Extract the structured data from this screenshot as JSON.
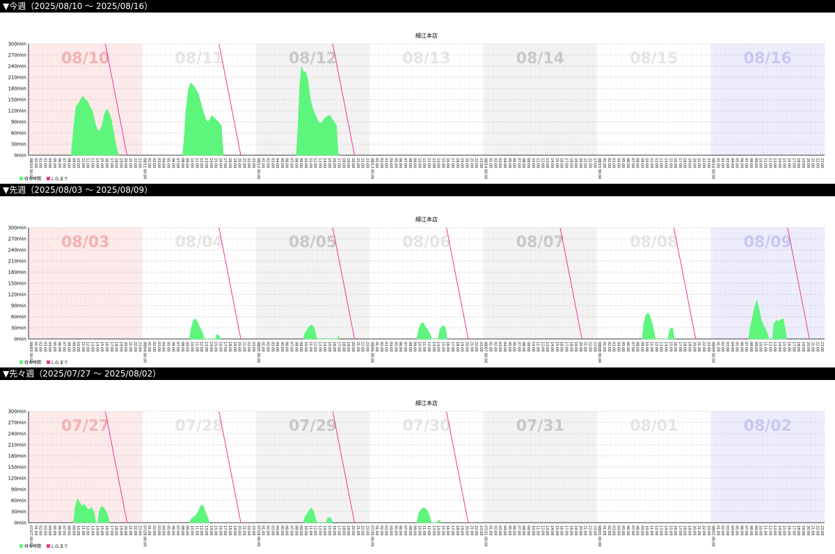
{
  "colors": {
    "wait": "#5ef57d",
    "lo": "#ee3399",
    "sunday_bg": "#fdeaea",
    "saturday_bg": "#ededfc",
    "gray_bg": "#f3f3f3",
    "sunday_label": "#f5b2b2",
    "saturday_label": "#c8c8f5",
    "label_dark": "#c9c9c9",
    "label_light": "#e6e6e6"
  },
  "chart_data": [
    {
      "type": "area",
      "header": "▼今週（2025/08/10 ～ 2025/08/16）",
      "title": "細江本店",
      "ylim": [
        0,
        300
      ],
      "y_ticks": [
        "0min",
        "30min",
        "60min",
        "90min",
        "120min",
        "150min",
        "180min",
        "210min",
        "240min",
        "270min",
        "300min"
      ],
      "legend": [
        "待ち時間",
        "L.O.まで"
      ],
      "hour_labels": [
        "00:00",
        "01:00",
        "02:00",
        "03:00",
        "04:00",
        "05:00",
        "06:00",
        "07:00",
        "08:00",
        "09:00",
        "10:00",
        "11:00",
        "12:00",
        "13:00",
        "14:00",
        "15:00",
        "16:00",
        "17:00",
        "18:00",
        "19:00",
        "20:00",
        "21:00",
        "22:00",
        "23:00"
      ],
      "days": [
        {
          "label": "08/10",
          "bg": "sunday",
          "lo": true,
          "wait": [
            [
              9,
              0
            ],
            [
              9.2,
              30
            ],
            [
              9.5,
              75
            ],
            [
              10,
              130
            ],
            [
              10.5,
              140
            ],
            [
              11,
              150
            ],
            [
              11.5,
              160
            ],
            [
              12,
              150
            ],
            [
              12.5,
              145
            ],
            [
              13,
              130
            ],
            [
              13.5,
              120
            ],
            [
              14,
              90
            ],
            [
              14.5,
              70
            ],
            [
              15,
              65
            ],
            [
              15.5,
              80
            ],
            [
              16,
              110
            ],
            [
              16.5,
              125
            ],
            [
              17,
              115
            ],
            [
              17.5,
              95
            ],
            [
              18,
              60
            ],
            [
              18.5,
              25
            ],
            [
              19,
              0
            ]
          ]
        },
        {
          "label": "08/11",
          "bg": "white",
          "lo": true,
          "wait": [
            [
              8.5,
              0
            ],
            [
              8.8,
              40
            ],
            [
              9.2,
              120
            ],
            [
              9.7,
              175
            ],
            [
              10.2,
              195
            ],
            [
              10.7,
              190
            ],
            [
              11.2,
              180
            ],
            [
              11.7,
              170
            ],
            [
              12.2,
              150
            ],
            [
              12.7,
              125
            ],
            [
              13.2,
              105
            ],
            [
              13.7,
              90
            ],
            [
              14.2,
              95
            ],
            [
              14.7,
              108
            ],
            [
              15.2,
              100
            ],
            [
              15.7,
              95
            ],
            [
              16.2,
              88
            ],
            [
              16.7,
              80
            ],
            [
              17.1,
              0
            ]
          ]
        },
        {
          "label": "08/12",
          "bg": "gray",
          "lo": true,
          "wait": [
            [
              8.5,
              0
            ],
            [
              8.8,
              60
            ],
            [
              9.2,
              180
            ],
            [
              9.6,
              240
            ],
            [
              10,
              225
            ],
            [
              10.5,
              225
            ],
            [
              11,
              200
            ],
            [
              11.5,
              150
            ],
            [
              12,
              125
            ],
            [
              12.5,
              110
            ],
            [
              13,
              95
            ],
            [
              13.5,
              85
            ],
            [
              14,
              90
            ],
            [
              14.5,
              100
            ],
            [
              15,
              105
            ],
            [
              15.5,
              108
            ],
            [
              16,
              100
            ],
            [
              16.5,
              90
            ],
            [
              17,
              80
            ],
            [
              17.4,
              0
            ]
          ]
        },
        {
          "label": "08/13",
          "bg": "white",
          "lo": false,
          "wait": []
        },
        {
          "label": "08/14",
          "bg": "gray",
          "lo": false,
          "wait": []
        },
        {
          "label": "08/15",
          "bg": "white",
          "lo": false,
          "wait": []
        },
        {
          "label": "08/16",
          "bg": "saturday",
          "lo": false,
          "wait": []
        }
      ]
    },
    {
      "type": "area",
      "header": "▼先週（2025/08/03 ～ 2025/08/09）",
      "title": "細江本店",
      "ylim": [
        0,
        300
      ],
      "y_ticks": [
        "0min",
        "30min",
        "60min",
        "90min",
        "120min",
        "150min",
        "180min",
        "210min",
        "240min",
        "270min",
        "300min"
      ],
      "legend": [
        "待ち時間",
        "L.O.まで"
      ],
      "hour_labels": [
        "00:00",
        "01:00",
        "02:00",
        "03:00",
        "04:00",
        "05:00",
        "06:00",
        "07:00",
        "08:00",
        "09:00",
        "10:00",
        "11:00",
        "12:00",
        "13:00",
        "14:00",
        "15:00",
        "16:00",
        "17:00",
        "18:00",
        "19:00",
        "20:00",
        "21:00",
        "22:00",
        "23:00"
      ],
      "days": [
        {
          "label": "08/03",
          "bg": "sunday",
          "lo": false,
          "wait": []
        },
        {
          "label": "08/04",
          "bg": "white",
          "lo": true,
          "wait": [
            [
              10,
              0
            ],
            [
              10.3,
              30
            ],
            [
              10.8,
              50
            ],
            [
              11.2,
              55
            ],
            [
              11.7,
              45
            ],
            [
              12.2,
              30
            ],
            [
              12.7,
              18
            ],
            [
              13.1,
              0
            ],
            [
              15.5,
              0
            ],
            [
              15.7,
              12
            ],
            [
              16.2,
              10
            ],
            [
              16.6,
              0
            ]
          ]
        },
        {
          "label": "08/05",
          "bg": "gray",
          "lo": true,
          "wait": [
            [
              10,
              0
            ],
            [
              10.3,
              15
            ],
            [
              10.8,
              25
            ],
            [
              11.3,
              35
            ],
            [
              11.8,
              38
            ],
            [
              12.3,
              30
            ],
            [
              12.6,
              15
            ],
            [
              12.8,
              0
            ],
            [
              17.2,
              0
            ],
            [
              17.4,
              8
            ],
            [
              17.7,
              0
            ]
          ]
        },
        {
          "label": "08/06",
          "bg": "white",
          "lo": true,
          "wait": [
            [
              10,
              0
            ],
            [
              10.3,
              25
            ],
            [
              10.8,
              40
            ],
            [
              11.2,
              45
            ],
            [
              11.7,
              35
            ],
            [
              12.2,
              25
            ],
            [
              12.7,
              15
            ],
            [
              13.1,
              0
            ],
            [
              14.5,
              0
            ],
            [
              14.8,
              25
            ],
            [
              15.3,
              35
            ],
            [
              15.8,
              35
            ],
            [
              16.1,
              25
            ],
            [
              16.3,
              0
            ]
          ]
        },
        {
          "label": "08/07",
          "bg": "gray",
          "lo": true,
          "wait": []
        },
        {
          "label": "08/08",
          "bg": "white",
          "lo": true,
          "wait": [
            [
              9.5,
              0
            ],
            [
              9.8,
              40
            ],
            [
              10.3,
              65
            ],
            [
              10.8,
              70
            ],
            [
              11.2,
              60
            ],
            [
              11.7,
              40
            ],
            [
              12,
              20
            ],
            [
              12.3,
              0
            ],
            [
              15,
              0
            ],
            [
              15.3,
              25
            ],
            [
              15.7,
              30
            ],
            [
              16,
              28
            ],
            [
              16.3,
              0
            ]
          ]
        },
        {
          "label": "08/09",
          "bg": "saturday",
          "lo": true,
          "wait": [
            [
              8,
              0
            ],
            [
              8.3,
              30
            ],
            [
              8.8,
              60
            ],
            [
              9.3,
              90
            ],
            [
              9.7,
              105
            ],
            [
              10.2,
              80
            ],
            [
              10.7,
              50
            ],
            [
              11.2,
              35
            ],
            [
              11.8,
              20
            ],
            [
              12.3,
              0
            ],
            [
              13,
              0
            ],
            [
              13.3,
              40
            ],
            [
              13.8,
              50
            ],
            [
              14.3,
              48
            ],
            [
              14.8,
              52
            ],
            [
              15.3,
              55
            ],
            [
              15.8,
              20
            ],
            [
              16,
              0
            ]
          ]
        }
      ]
    },
    {
      "type": "area",
      "header": "▼先々週（2025/07/27 ～ 2025/08/02）",
      "title": "細江本店",
      "ylim": [
        0,
        300
      ],
      "y_ticks": [
        "0min",
        "30min",
        "60min",
        "90min",
        "120min",
        "150min",
        "180min",
        "210min",
        "240min",
        "270min",
        "300min"
      ],
      "legend": [
        "待ち時間",
        "L.O.まで"
      ],
      "hour_labels": [
        "00:00",
        "01:00",
        "02:00",
        "03:00",
        "04:00",
        "05:00",
        "06:00",
        "07:00",
        "08:00",
        "09:00",
        "10:00",
        "11:00",
        "12:00",
        "13:00",
        "14:00",
        "15:00",
        "16:00",
        "17:00",
        "18:00",
        "19:00",
        "20:00",
        "21:00",
        "22:00",
        "23:00"
      ],
      "days": [
        {
          "label": "07/27",
          "bg": "sunday",
          "lo": true,
          "wait": [
            [
              9.5,
              0
            ],
            [
              9.8,
              40
            ],
            [
              10.3,
              65
            ],
            [
              10.8,
              55
            ],
            [
              11.3,
              45
            ],
            [
              11.8,
              50
            ],
            [
              12.3,
              40
            ],
            [
              12.8,
              35
            ],
            [
              13.3,
              42
            ],
            [
              13.8,
              30
            ],
            [
              14.2,
              0
            ],
            [
              14.6,
              0
            ],
            [
              14.9,
              30
            ],
            [
              15.4,
              45
            ],
            [
              15.9,
              40
            ],
            [
              16.4,
              30
            ],
            [
              16.8,
              18
            ],
            [
              17.1,
              0
            ]
          ]
        },
        {
          "label": "07/28",
          "bg": "white",
          "lo": true,
          "wait": [
            [
              10,
              0
            ],
            [
              10.3,
              10
            ],
            [
              10.8,
              15
            ],
            [
              11.3,
              20
            ],
            [
              11.8,
              30
            ],
            [
              12.3,
              45
            ],
            [
              12.8,
              48
            ],
            [
              13.3,
              30
            ],
            [
              13.8,
              15
            ],
            [
              14.2,
              0
            ]
          ]
        },
        {
          "label": "07/29",
          "bg": "gray",
          "lo": true,
          "wait": [
            [
              10,
              0
            ],
            [
              10.3,
              15
            ],
            [
              10.8,
              25
            ],
            [
              11.3,
              35
            ],
            [
              11.7,
              40
            ],
            [
              12.2,
              30
            ],
            [
              12.6,
              10
            ],
            [
              12.9,
              0
            ],
            [
              14.8,
              0
            ],
            [
              15.1,
              12
            ],
            [
              15.5,
              15
            ],
            [
              15.9,
              10
            ],
            [
              16.2,
              0
            ]
          ]
        },
        {
          "label": "07/30",
          "bg": "white",
          "lo": true,
          "wait": [
            [
              10,
              0
            ],
            [
              10.3,
              25
            ],
            [
              10.8,
              35
            ],
            [
              11.3,
              40
            ],
            [
              11.8,
              38
            ],
            [
              12.3,
              30
            ],
            [
              12.7,
              15
            ],
            [
              13,
              0
            ],
            [
              14.2,
              0
            ],
            [
              14.4,
              6
            ],
            [
              14.8,
              6
            ],
            [
              15,
              0
            ]
          ]
        },
        {
          "label": "07/31",
          "bg": "gray",
          "lo": false,
          "wait": []
        },
        {
          "label": "08/01",
          "bg": "white",
          "lo": false,
          "wait": []
        },
        {
          "label": "08/02",
          "bg": "saturday",
          "lo": false,
          "wait": []
        }
      ]
    }
  ]
}
